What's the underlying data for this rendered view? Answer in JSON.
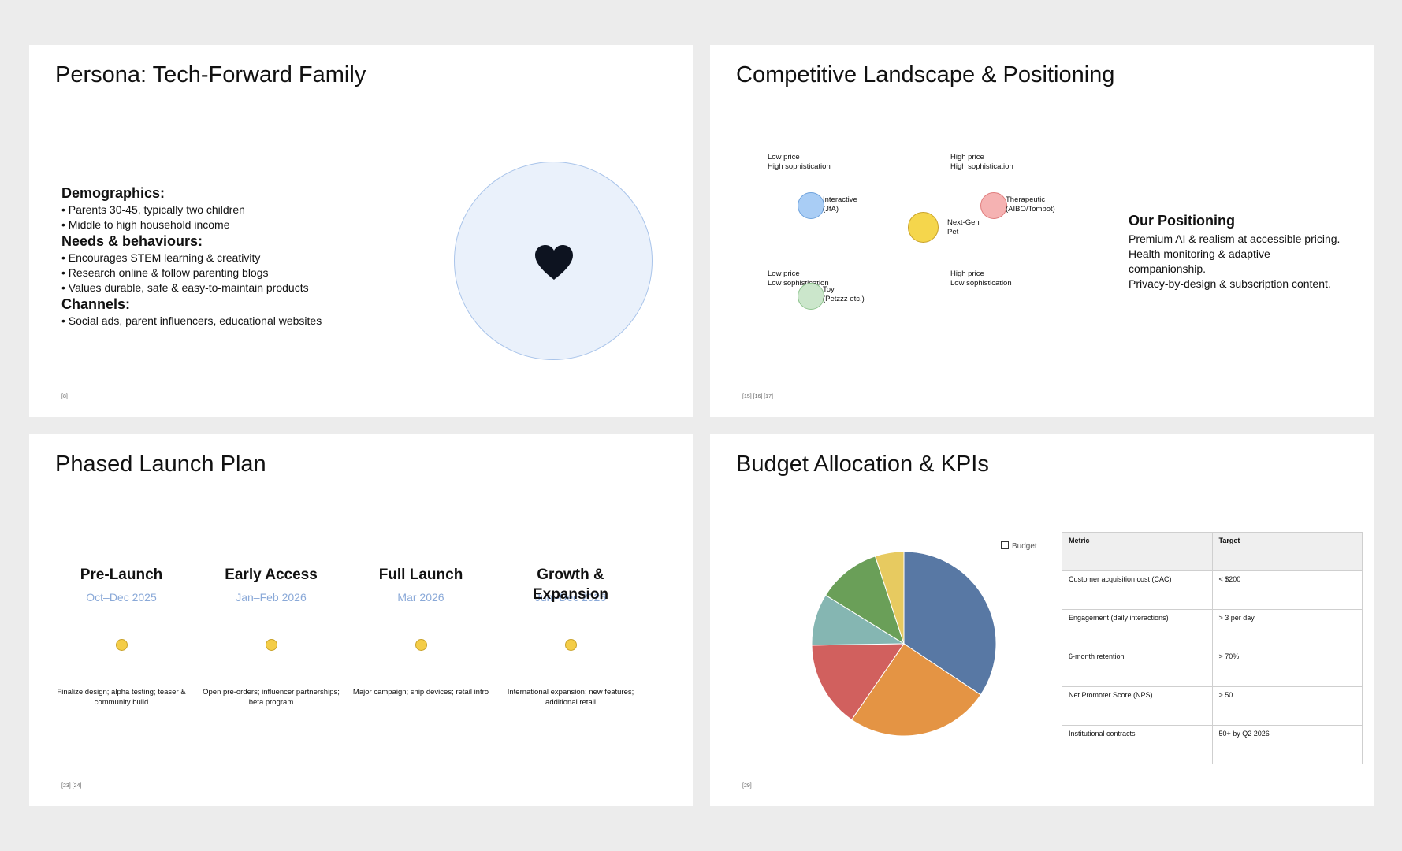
{
  "slide1": {
    "title": "Persona: Tech-Forward Family",
    "sections": [
      {
        "heading": "Demographics:",
        "items": [
          "• Parents 30-45, typically two children",
          "• Middle to high household income"
        ]
      },
      {
        "heading": "Needs & behaviours:",
        "items": [
          "• Encourages STEM learning & creativity",
          "• Research online & follow parenting blogs",
          "• Values durable, safe & easy-to-maintain products"
        ]
      },
      {
        "heading": "Channels:",
        "items": [
          "• Social ads, parent influencers, educational websites"
        ]
      }
    ],
    "icon": "heart-icon",
    "footnote": "[8]"
  },
  "slide2": {
    "title": "Competitive Landscape & Positioning",
    "quadrants": {
      "top_left": [
        "Low price",
        "High sophistication"
      ],
      "top_right": [
        "High price",
        "High sophistication"
      ],
      "bottom_left": [
        "Low price",
        "Low sophistication"
      ],
      "bottom_right": [
        "High price",
        "Low sophistication"
      ]
    },
    "bubbles": [
      {
        "name": "interactive",
        "lines": [
          "Interactive",
          "(JfA)"
        ],
        "color": "#a9cdf5",
        "border": "#6fa3dd"
      },
      {
        "name": "therapeutic",
        "lines": [
          "Therapeutic",
          "(AIBO/Tombot)"
        ],
        "color": "#f5b2b2",
        "border": "#e07d7d"
      },
      {
        "name": "next-gen-pet",
        "lines": [
          "Next-Gen",
          "Pet"
        ],
        "color": "#f5d64c",
        "border": "#c9a227"
      },
      {
        "name": "toy",
        "lines": [
          "Toy",
          "(Petzzz etc.)"
        ],
        "color": "#cbe6cb",
        "border": "#8fc48f"
      }
    ],
    "positioning": {
      "title": "Our Positioning",
      "lines": [
        "Premium AI & realism at accessible pricing.",
        "Health monitoring & adaptive",
        "companionship.",
        "Privacy-by-design & subscription content."
      ]
    },
    "footnote": "[15] [16] [17]"
  },
  "slide3": {
    "title": "Phased Launch Plan",
    "phases": [
      {
        "title": "Pre-Launch",
        "date": "Oct–Dec 2025",
        "desc": "Finalize design; alpha testing; teaser & community build"
      },
      {
        "title": "Early Access",
        "date": "Jan–Feb 2026",
        "desc": "Open pre-orders; influencer partnerships; beta program"
      },
      {
        "title": "Full Launch",
        "date": "Mar 2026",
        "desc": "Major campaign; ship devices; retail intro"
      },
      {
        "title": "Growth & Expansion",
        "date": "Jun–Dec 2026",
        "desc": "International expansion; new features; additional retail"
      }
    ],
    "marker_color": "#f4cd48",
    "footnote": "[23] [24]"
  },
  "slide4": {
    "title": "Budget Allocation & KPIs",
    "chart_data": {
      "type": "pie",
      "legend": [
        "Budget"
      ],
      "slices": [
        {
          "share": 0.34,
          "color": "#5878a4"
        },
        {
          "share": 0.25,
          "color": "#e49444"
        },
        {
          "share": 0.15,
          "color": "#d1605e"
        },
        {
          "share": 0.09,
          "color": "#85b6b2"
        },
        {
          "share": 0.11,
          "color": "#6a9f58"
        },
        {
          "share": 0.05,
          "color": "#e7ca60"
        }
      ]
    },
    "table": {
      "headers": [
        "Metric",
        "Target"
      ],
      "rows": [
        [
          "Customer acquisition cost (CAC)",
          "< $200"
        ],
        [
          "Engagement (daily interactions)",
          "> 3 per day"
        ],
        [
          "6-month retention",
          "> 70%"
        ],
        [
          "Net Promoter Score (NPS)",
          "> 50"
        ],
        [
          "Institutional contracts",
          "50+ by Q2 2026"
        ]
      ]
    },
    "footnote": "[29]"
  }
}
